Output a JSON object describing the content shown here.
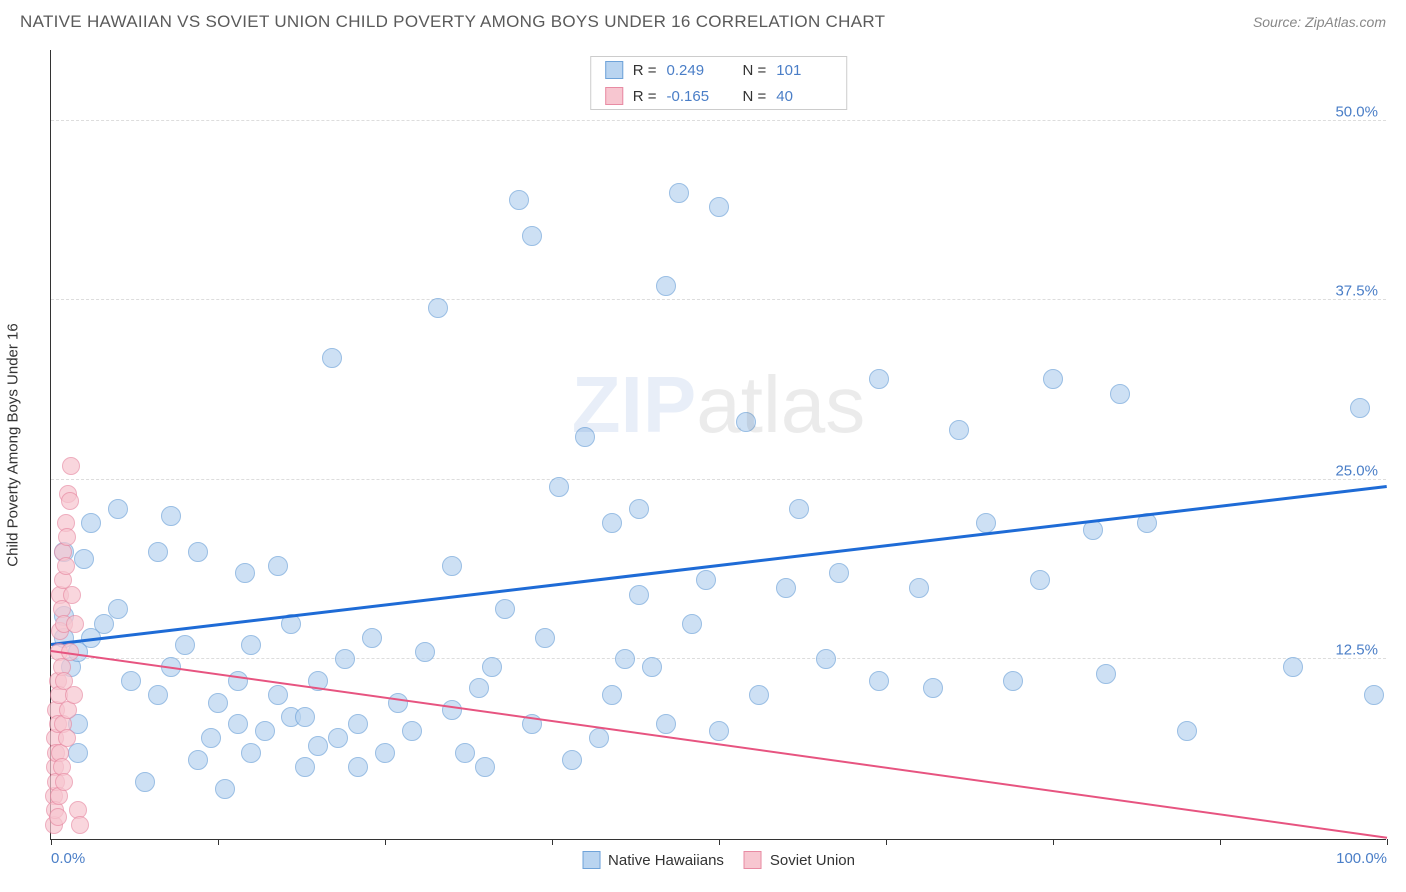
{
  "header": {
    "title": "NATIVE HAWAIIAN VS SOVIET UNION CHILD POVERTY AMONG BOYS UNDER 16 CORRELATION CHART",
    "source_prefix": "Source: ",
    "source_name": "ZipAtlas.com"
  },
  "chart": {
    "type": "scatter",
    "ylabel": "Child Poverty Among Boys Under 16",
    "xlim": [
      0,
      100
    ],
    "ylim": [
      0,
      55
    ],
    "xticks": [
      0,
      12.5,
      25,
      37.5,
      50,
      62.5,
      75,
      87.5,
      100
    ],
    "xtick_labels": {
      "0": "0.0%",
      "100": "100.0%"
    },
    "yticks": [
      12.5,
      25,
      37.5,
      50
    ],
    "ytick_labels": {
      "12.5": "12.5%",
      "25": "25.0%",
      "37.5": "37.5%",
      "50": "50.0%"
    },
    "background_color": "#ffffff",
    "grid_color": "#dddddd",
    "axis_color": "#333333",
    "tick_label_color": "#4a7ec7",
    "watermark": {
      "part1": "ZIP",
      "part2": "atlas"
    }
  },
  "series": [
    {
      "name": "Native Hawaiians",
      "fill_color": "#b9d4f0",
      "stroke_color": "#6fa3d9",
      "marker_radius": 10,
      "marker_opacity": 0.7,
      "trend": {
        "y_at_x0": 13.5,
        "y_at_x100": 24.5,
        "color": "#1e6bd6",
        "width": 2.5
      },
      "stats": {
        "R": "0.249",
        "N": "101"
      },
      "points": [
        [
          1,
          14
        ],
        [
          1,
          15.5
        ],
        [
          1,
          20
        ],
        [
          1.5,
          12
        ],
        [
          2,
          6
        ],
        [
          2,
          8
        ],
        [
          2,
          13
        ],
        [
          2.5,
          19.5
        ],
        [
          3,
          14
        ],
        [
          3,
          22
        ],
        [
          4,
          15
        ],
        [
          5,
          23
        ],
        [
          5,
          16
        ],
        [
          6,
          11
        ],
        [
          7,
          4
        ],
        [
          8,
          10
        ],
        [
          8,
          20
        ],
        [
          9,
          12
        ],
        [
          9,
          22.5
        ],
        [
          10,
          13.5
        ],
        [
          11,
          5.5
        ],
        [
          11,
          20
        ],
        [
          12,
          7
        ],
        [
          12.5,
          9.5
        ],
        [
          13,
          3.5
        ],
        [
          14,
          11
        ],
        [
          14,
          8
        ],
        [
          14.5,
          18.5
        ],
        [
          15,
          6
        ],
        [
          15,
          13.5
        ],
        [
          16,
          7.5
        ],
        [
          17,
          19
        ],
        [
          17,
          10
        ],
        [
          18,
          8.5
        ],
        [
          18,
          15
        ],
        [
          19,
          5
        ],
        [
          19,
          8.5
        ],
        [
          20,
          6.5
        ],
        [
          20,
          11
        ],
        [
          21,
          33.5
        ],
        [
          21.5,
          7
        ],
        [
          22,
          12.5
        ],
        [
          23,
          5
        ],
        [
          23,
          8
        ],
        [
          24,
          14
        ],
        [
          25,
          6
        ],
        [
          26,
          9.5
        ],
        [
          27,
          7.5
        ],
        [
          28,
          13
        ],
        [
          29,
          37
        ],
        [
          30,
          19
        ],
        [
          30,
          9
        ],
        [
          31,
          6
        ],
        [
          32,
          10.5
        ],
        [
          32.5,
          5
        ],
        [
          33,
          12
        ],
        [
          34,
          16
        ],
        [
          35,
          44.5
        ],
        [
          36,
          8
        ],
        [
          36,
          42
        ],
        [
          37,
          14
        ],
        [
          38,
          24.5
        ],
        [
          39,
          5.5
        ],
        [
          40,
          28
        ],
        [
          41,
          7
        ],
        [
          42,
          22
        ],
        [
          42,
          10
        ],
        [
          43,
          12.5
        ],
        [
          44,
          17
        ],
        [
          44,
          23
        ],
        [
          45,
          12
        ],
        [
          46,
          8
        ],
        [
          46,
          38.5
        ],
        [
          47,
          45
        ],
        [
          48,
          15
        ],
        [
          49,
          18
        ],
        [
          50,
          7.5
        ],
        [
          50,
          44
        ],
        [
          52,
          29
        ],
        [
          53,
          10
        ],
        [
          55,
          17.5
        ],
        [
          56,
          23
        ],
        [
          58,
          12.5
        ],
        [
          59,
          18.5
        ],
        [
          62,
          11
        ],
        [
          62,
          32
        ],
        [
          65,
          17.5
        ],
        [
          66,
          10.5
        ],
        [
          68,
          28.5
        ],
        [
          70,
          22
        ],
        [
          72,
          11
        ],
        [
          74,
          18
        ],
        [
          75,
          32
        ],
        [
          78,
          21.5
        ],
        [
          79,
          11.5
        ],
        [
          80,
          31
        ],
        [
          82,
          22
        ],
        [
          85,
          7.5
        ],
        [
          93,
          12
        ],
        [
          98,
          30
        ],
        [
          99,
          10
        ]
      ]
    },
    {
      "name": "Soviet Union",
      "fill_color": "#f7c6d0",
      "stroke_color": "#e88ba3",
      "marker_radius": 9,
      "marker_opacity": 0.7,
      "trend": {
        "y_at_x0": 13,
        "y_at_x100": 0,
        "color": "#e75480",
        "width": 2
      },
      "stats": {
        "R": "-0.165",
        "N": "40"
      },
      "points": [
        [
          0.2,
          1
        ],
        [
          0.2,
          3
        ],
        [
          0.3,
          2
        ],
        [
          0.3,
          5
        ],
        [
          0.3,
          7
        ],
        [
          0.4,
          4
        ],
        [
          0.4,
          6
        ],
        [
          0.4,
          9
        ],
        [
          0.5,
          1.5
        ],
        [
          0.5,
          8
        ],
        [
          0.5,
          11
        ],
        [
          0.6,
          3
        ],
        [
          0.6,
          10
        ],
        [
          0.6,
          13
        ],
        [
          0.7,
          6
        ],
        [
          0.7,
          14.5
        ],
        [
          0.7,
          17
        ],
        [
          0.8,
          5
        ],
        [
          0.8,
          12
        ],
        [
          0.8,
          16
        ],
        [
          0.9,
          8
        ],
        [
          0.9,
          18
        ],
        [
          0.9,
          20
        ],
        [
          1.0,
          4
        ],
        [
          1.0,
          11
        ],
        [
          1.0,
          15
        ],
        [
          1.1,
          19
        ],
        [
          1.1,
          22
        ],
        [
          1.2,
          7
        ],
        [
          1.2,
          21
        ],
        [
          1.3,
          24
        ],
        [
          1.3,
          9
        ],
        [
          1.4,
          13
        ],
        [
          1.4,
          23.5
        ],
        [
          1.5,
          26
        ],
        [
          1.6,
          17
        ],
        [
          1.7,
          10
        ],
        [
          1.8,
          15
        ],
        [
          2.0,
          2
        ],
        [
          2.2,
          1
        ]
      ]
    }
  ],
  "legend_top": {
    "r_label": "R =",
    "n_label": "N ="
  },
  "legend_bottom": {
    "items": [
      {
        "label": "Native Hawaiians",
        "fill": "#b9d4f0",
        "stroke": "#6fa3d9"
      },
      {
        "label": "Soviet Union",
        "fill": "#f7c6d0",
        "stroke": "#e88ba3"
      }
    ]
  }
}
